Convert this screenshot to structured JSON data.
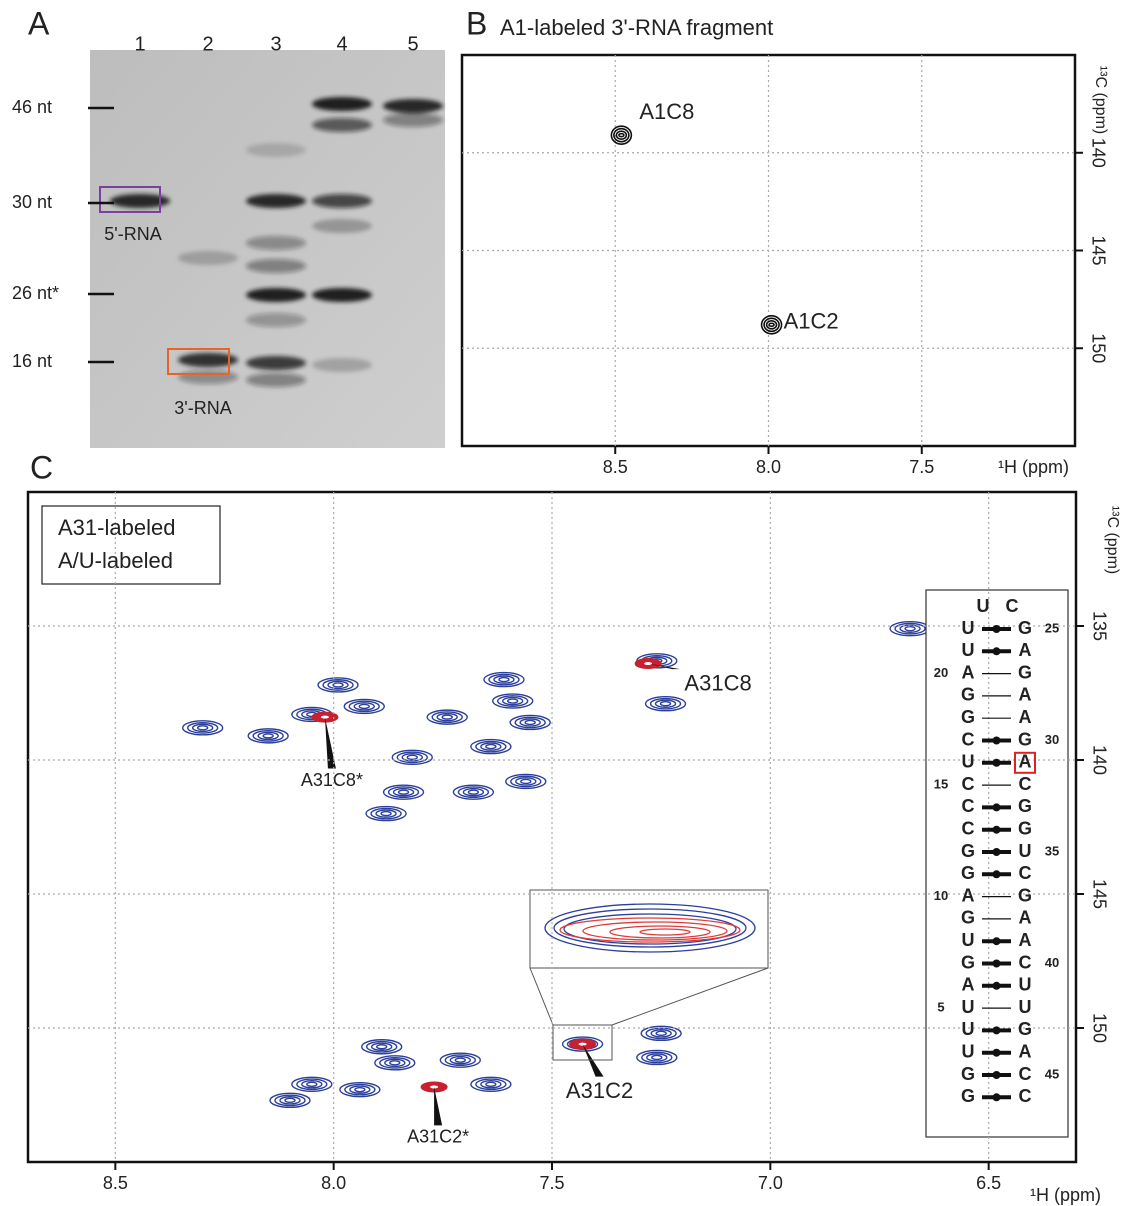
{
  "panel_a": {
    "label": "A",
    "lanes": [
      "1",
      "2",
      "3",
      "4",
      "5"
    ],
    "sizes": [
      "46 nt",
      "30 nt",
      "26 nt*",
      "16 nt"
    ],
    "box_labels": [
      "5'-RNA",
      "3'-RNA"
    ]
  },
  "panel_b": {
    "label": "B",
    "title": "A1-labeled 3'-RNA fragment",
    "x_label": "¹H (ppm)",
    "y_label": "¹³C (ppm)",
    "xlim": [
      9.0,
      7.0
    ],
    "ylim": [
      135,
      155
    ],
    "xticks": [
      8.5,
      {
        "value": 8,
        "label": "8.0"
      },
      7.5
    ],
    "yticks": [
      140,
      145,
      150
    ],
    "grid": true,
    "color": "#111111",
    "peaks": [
      {
        "label": "A1C8",
        "h": 8.48,
        "c": 139.1
      },
      {
        "label": "A1C2",
        "h": 7.99,
        "c": 148.8
      }
    ]
  },
  "panel_c": {
    "label": "C",
    "x_label": "¹H (ppm)",
    "y_label": "¹³C (ppm)",
    "xlim": [
      8.7,
      6.3
    ],
    "ylim": [
      130,
      155
    ],
    "xticks": [
      8.5,
      {
        "value": 8,
        "label": "8.0"
      },
      7.5,
      {
        "value": 7,
        "label": "7.0"
      },
      6.5
    ],
    "yticks": [
      135,
      140,
      145,
      150
    ],
    "grid": true,
    "series": [
      {
        "name": "A/U-labeled",
        "color": "#2b3f9c",
        "peaks": [
          {
            "h": 8.3,
            "c": 138.8
          },
          {
            "h": 8.15,
            "c": 139.1
          },
          {
            "h": 7.99,
            "c": 137.2
          },
          {
            "h": 7.93,
            "c": 138.0
          },
          {
            "h": 8.05,
            "c": 138.3
          },
          {
            "h": 7.82,
            "c": 139.9
          },
          {
            "h": 7.84,
            "c": 141.2
          },
          {
            "h": 7.88,
            "c": 142.0
          },
          {
            "h": 7.74,
            "c": 138.4
          },
          {
            "h": 7.61,
            "c": 137.0
          },
          {
            "h": 7.59,
            "c": 137.8
          },
          {
            "h": 7.55,
            "c": 138.6
          },
          {
            "h": 7.64,
            "c": 139.5
          },
          {
            "h": 7.68,
            "c": 141.2
          },
          {
            "h": 7.56,
            "c": 140.8
          },
          {
            "h": 7.26,
            "c": 136.3
          },
          {
            "h": 7.24,
            "c": 137.9
          },
          {
            "h": 6.68,
            "c": 135.1
          },
          {
            "h": 7.89,
            "c": 150.7
          },
          {
            "h": 7.86,
            "c": 151.3
          },
          {
            "h": 7.71,
            "c": 151.2
          },
          {
            "h": 8.05,
            "c": 152.1
          },
          {
            "h": 7.94,
            "c": 152.3
          },
          {
            "h": 8.1,
            "c": 152.7
          },
          {
            "h": 7.64,
            "c": 152.1
          },
          {
            "h": 7.43,
            "c": 150.6
          },
          {
            "h": 7.25,
            "c": 150.2
          },
          {
            "h": 7.26,
            "c": 151.1
          }
        ]
      },
      {
        "name": "A31-labeled",
        "color": "#c8202e",
        "peaks": [
          {
            "label": "A31C8",
            "h": 7.28,
            "c": 136.4
          },
          {
            "label": "A31C8*",
            "h": 8.02,
            "c": 138.4
          },
          {
            "label": "A31C2",
            "h": 7.43,
            "c": 150.6
          },
          {
            "label": "A31C2*",
            "h": 7.77,
            "c": 152.2
          }
        ]
      }
    ],
    "rna": {
      "rows": [
        {
          "left": "U",
          "right": "C"
        },
        {
          "left": "U",
          "right": "G",
          "right_number": "25"
        },
        {
          "left": "U",
          "right": "A"
        },
        {
          "left": "A",
          "right": "G",
          "left_number": "20"
        },
        {
          "left": "G",
          "right": "A"
        },
        {
          "left": "G",
          "right": "A"
        },
        {
          "left": "C",
          "right": "G",
          "right_number": "30"
        },
        {
          "left": "U",
          "right": "A"
        },
        {
          "left": "C",
          "right": "C",
          "left_number": "15"
        },
        {
          "left": "C",
          "right": "G"
        },
        {
          "left": "C",
          "right": "G"
        },
        {
          "left": "G",
          "right": "U",
          "right_number": "35"
        },
        {
          "left": "G",
          "right": "C"
        },
        {
          "left": "A",
          "right": "G",
          "left_number": "10"
        },
        {
          "left": "G",
          "right": "A"
        },
        {
          "left": "U",
          "right": "A"
        },
        {
          "left": "G",
          "right": "C",
          "right_number": "40"
        },
        {
          "left": "A",
          "right": "U"
        },
        {
          "left": "U",
          "right": "U",
          "left_number": "5"
        },
        {
          "left": "U",
          "right": "G"
        },
        {
          "left": "U",
          "right": "A"
        },
        {
          "left": "G",
          "right": "C",
          "right_number": "45"
        },
        {
          "left": "G",
          "right": "C"
        }
      ]
    }
  }
}
